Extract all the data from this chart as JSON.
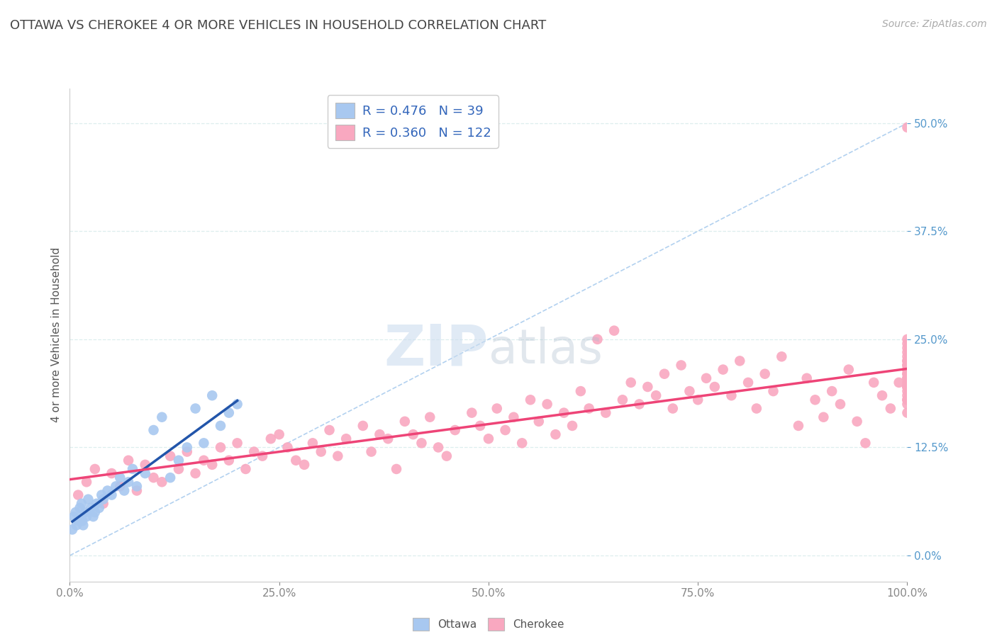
{
  "title": "OTTAWA VS CHEROKEE 4 OR MORE VEHICLES IN HOUSEHOLD CORRELATION CHART",
  "source_text": "Source: ZipAtlas.com",
  "ylabel": "4 or more Vehicles in Household",
  "legend_labels": [
    "Ottawa",
    "Cherokee"
  ],
  "ottawa_R": 0.476,
  "ottawa_N": 39,
  "cherokee_R": 0.36,
  "cherokee_N": 122,
  "ottawa_color": "#A8C8F0",
  "cherokee_color": "#F9A8C0",
  "ottawa_line_color": "#2255AA",
  "cherokee_line_color": "#EE4477",
  "ref_line_color": "#AACCEE",
  "background_color": "#FFFFFF",
  "grid_color": "#DDEEEE",
  "title_color": "#444444",
  "tick_color_y": "#5599CC",
  "tick_color_x": "#888888",
  "title_fontsize": 13,
  "tick_fontsize": 11,
  "ylabel_fontsize": 11,
  "source_fontsize": 10,
  "watermark_color": "#CCDDEF",
  "watermark_alpha": 0.6,
  "ottawa_x": [
    0.3,
    0.5,
    0.7,
    0.8,
    1.0,
    1.2,
    1.4,
    1.5,
    1.6,
    1.8,
    2.0,
    2.2,
    2.5,
    2.8,
    3.0,
    3.2,
    3.5,
    3.8,
    4.0,
    4.5,
    5.0,
    5.5,
    6.0,
    6.5,
    7.0,
    7.5,
    8.0,
    9.0,
    10.0,
    11.0,
    12.0,
    13.0,
    14.0,
    15.0,
    16.0,
    17.0,
    18.0,
    19.0,
    20.0
  ],
  "ottawa_y": [
    3.0,
    4.5,
    5.0,
    3.5,
    4.0,
    5.5,
    6.0,
    4.0,
    3.5,
    5.0,
    4.5,
    6.5,
    5.5,
    4.5,
    5.0,
    6.0,
    5.5,
    7.0,
    6.5,
    7.5,
    7.0,
    8.0,
    9.0,
    7.5,
    8.5,
    10.0,
    8.0,
    9.5,
    14.5,
    16.0,
    9.0,
    11.0,
    12.5,
    17.0,
    13.0,
    18.5,
    15.0,
    16.5,
    17.5
  ],
  "cherokee_x": [
    1.0,
    2.0,
    3.0,
    4.0,
    5.0,
    6.0,
    7.0,
    8.0,
    9.0,
    10.0,
    11.0,
    12.0,
    13.0,
    14.0,
    15.0,
    16.0,
    17.0,
    18.0,
    19.0,
    20.0,
    21.0,
    22.0,
    23.0,
    24.0,
    25.0,
    26.0,
    27.0,
    28.0,
    29.0,
    30.0,
    31.0,
    32.0,
    33.0,
    35.0,
    36.0,
    37.0,
    38.0,
    39.0,
    40.0,
    41.0,
    42.0,
    43.0,
    44.0,
    45.0,
    46.0,
    48.0,
    49.0,
    50.0,
    51.0,
    52.0,
    53.0,
    54.0,
    55.0,
    56.0,
    57.0,
    58.0,
    59.0,
    60.0,
    61.0,
    62.0,
    63.0,
    64.0,
    65.0,
    66.0,
    67.0,
    68.0,
    69.0,
    70.0,
    71.0,
    72.0,
    73.0,
    74.0,
    75.0,
    76.0,
    77.0,
    78.0,
    79.0,
    80.0,
    81.0,
    82.0,
    83.0,
    84.0,
    85.0,
    87.0,
    88.0,
    89.0,
    90.0,
    91.0,
    92.0,
    93.0,
    94.0,
    95.0,
    96.0,
    97.0,
    98.0,
    99.0,
    100.0,
    100.0,
    100.0,
    100.0,
    100.0,
    100.0,
    100.0,
    100.0,
    100.0,
    100.0,
    100.0,
    100.0,
    100.0,
    100.0,
    100.0,
    100.0,
    100.0,
    100.0,
    100.0,
    100.0,
    100.0,
    100.0,
    100.0,
    100.0,
    100.0,
    100.0
  ],
  "cherokee_y": [
    7.0,
    8.5,
    10.0,
    6.0,
    9.5,
    8.0,
    11.0,
    7.5,
    10.5,
    9.0,
    8.5,
    11.5,
    10.0,
    12.0,
    9.5,
    11.0,
    10.5,
    12.5,
    11.0,
    13.0,
    10.0,
    12.0,
    11.5,
    13.5,
    14.0,
    12.5,
    11.0,
    10.5,
    13.0,
    12.0,
    14.5,
    11.5,
    13.5,
    15.0,
    12.0,
    14.0,
    13.5,
    10.0,
    15.5,
    14.0,
    13.0,
    16.0,
    12.5,
    11.5,
    14.5,
    16.5,
    15.0,
    13.5,
    17.0,
    14.5,
    16.0,
    13.0,
    18.0,
    15.5,
    17.5,
    14.0,
    16.5,
    15.0,
    19.0,
    17.0,
    25.0,
    16.5,
    26.0,
    18.0,
    20.0,
    17.5,
    19.5,
    18.5,
    21.0,
    17.0,
    22.0,
    19.0,
    18.0,
    20.5,
    19.5,
    21.5,
    18.5,
    22.5,
    20.0,
    17.0,
    21.0,
    19.0,
    23.0,
    15.0,
    20.5,
    18.0,
    16.0,
    19.0,
    17.5,
    21.5,
    15.5,
    13.0,
    20.0,
    18.5,
    17.0,
    20.0,
    21.0,
    18.0,
    19.5,
    16.5,
    20.0,
    21.5,
    17.5,
    22.0,
    19.0,
    18.5,
    20.5,
    23.5,
    22.5,
    21.0,
    19.5,
    24.0,
    20.5,
    22.0,
    18.0,
    23.0,
    19.5,
    25.0,
    21.5,
    24.5,
    22.5,
    49.5
  ]
}
